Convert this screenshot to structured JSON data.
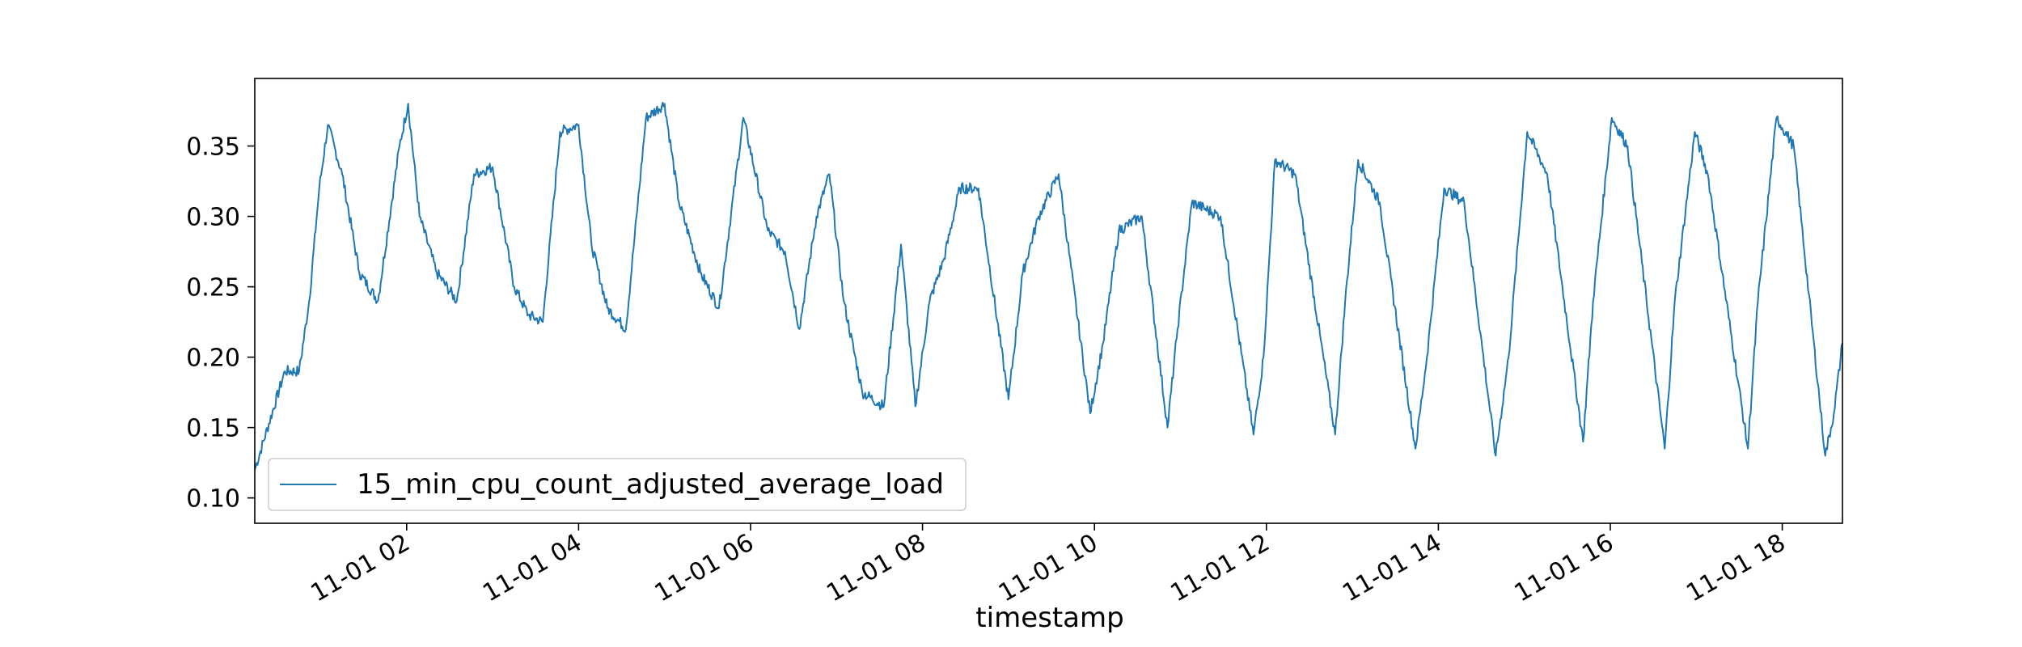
{
  "chart_data": {
    "type": "line",
    "title": "",
    "xlabel": "timestamp",
    "ylabel": "",
    "grid": false,
    "legend_placement": "lower left",
    "xlim": [
      "11-01 00:14",
      "11-01 18:42"
    ],
    "ylim": [
      0.082,
      0.398
    ],
    "x_tick_labels": [
      "11-01 02",
      "11-01 04",
      "11-01 06",
      "11-01 08",
      "11-01 10",
      "11-01 12",
      "11-01 14",
      "11-01 16",
      "11-01 18"
    ],
    "y_tick_labels": [
      "0.10",
      "0.15",
      "0.20",
      "0.25",
      "0.30",
      "0.35"
    ],
    "series": [
      {
        "name": "15_min_cpu_count_adjusted_average_load",
        "color": "#1f77b4",
        "x": [
          "11-01 00:14",
          "11-01 00:35",
          "11-01 00:45",
          "11-01 00:52",
          "11-01 00:59",
          "11-01 01:05",
          "11-01 01:15",
          "11-01 01:27",
          "11-01 01:40",
          "11-01 01:55",
          "11-01 02:01",
          "11-01 02:09",
          "11-01 02:21",
          "11-01 02:35",
          "11-01 02:47",
          "11-01 03:00",
          "11-01 03:15",
          "11-01 03:25",
          "11-01 03:35",
          "11-01 03:47",
          "11-01 04:00",
          "11-01 04:09",
          "11-01 04:20",
          "11-01 04:33",
          "11-01 04:47",
          "11-01 05:00",
          "11-01 05:10",
          "11-01 05:25",
          "11-01 05:38",
          "11-01 05:55",
          "11-01 06:12",
          "11-01 06:24",
          "11-01 06:34",
          "11-01 06:46",
          "11-01 06:55",
          "11-01 07:05",
          "11-01 07:18",
          "11-01 07:33",
          "11-01 07:45",
          "11-01 07:55",
          "11-01 08:05",
          "11-01 08:15",
          "11-01 08:26",
          "11-01 08:39",
          "11-01 09:00",
          "11-01 09:10",
          "11-01 09:21",
          "11-01 09:35",
          "11-01 09:57",
          "11-01 10:06",
          "11-01 10:17",
          "11-01 10:33",
          "11-01 10:51",
          "11-01 10:58",
          "11-01 11:08",
          "11-01 11:28",
          "11-01 11:51",
          "11-01 11:58",
          "11-01 12:06",
          "11-01 12:20",
          "11-01 12:48",
          "11-01 12:55",
          "11-01 13:04",
          "11-01 13:19",
          "11-01 13:44",
          "11-01 13:52",
          "11-01 14:04",
          "11-01 14:18",
          "11-01 14:40",
          "11-01 14:49",
          "11-01 15:02",
          "11-01 15:16",
          "11-01 15:41",
          "11-01 15:48",
          "11-01 16:01",
          "11-01 16:12",
          "11-01 16:38",
          "11-01 16:45",
          "11-01 16:59",
          "11-01 17:08",
          "11-01 17:36",
          "11-01 17:43",
          "11-01 17:56",
          "11-01 18:08",
          "11-01 18:30",
          "11-01 18:36",
          "11-01 18:42"
        ],
        "values": [
          0.12,
          0.19,
          0.19,
          0.24,
          0.32,
          0.365,
          0.33,
          0.26,
          0.24,
          0.35,
          0.38,
          0.3,
          0.26,
          0.24,
          0.33,
          0.335,
          0.25,
          0.23,
          0.225,
          0.36,
          0.365,
          0.28,
          0.235,
          0.22,
          0.37,
          0.38,
          0.31,
          0.26,
          0.235,
          0.37,
          0.29,
          0.275,
          0.22,
          0.3,
          0.33,
          0.24,
          0.175,
          0.165,
          0.28,
          0.165,
          0.24,
          0.27,
          0.32,
          0.32,
          0.17,
          0.26,
          0.3,
          0.33,
          0.16,
          0.21,
          0.29,
          0.3,
          0.15,
          0.22,
          0.31,
          0.3,
          0.145,
          0.2,
          0.34,
          0.33,
          0.145,
          0.24,
          0.34,
          0.31,
          0.135,
          0.2,
          0.32,
          0.31,
          0.13,
          0.2,
          0.36,
          0.33,
          0.14,
          0.24,
          0.37,
          0.35,
          0.135,
          0.24,
          0.36,
          0.33,
          0.135,
          0.24,
          0.37,
          0.35,
          0.13,
          0.16,
          0.21
        ]
      }
    ]
  }
}
